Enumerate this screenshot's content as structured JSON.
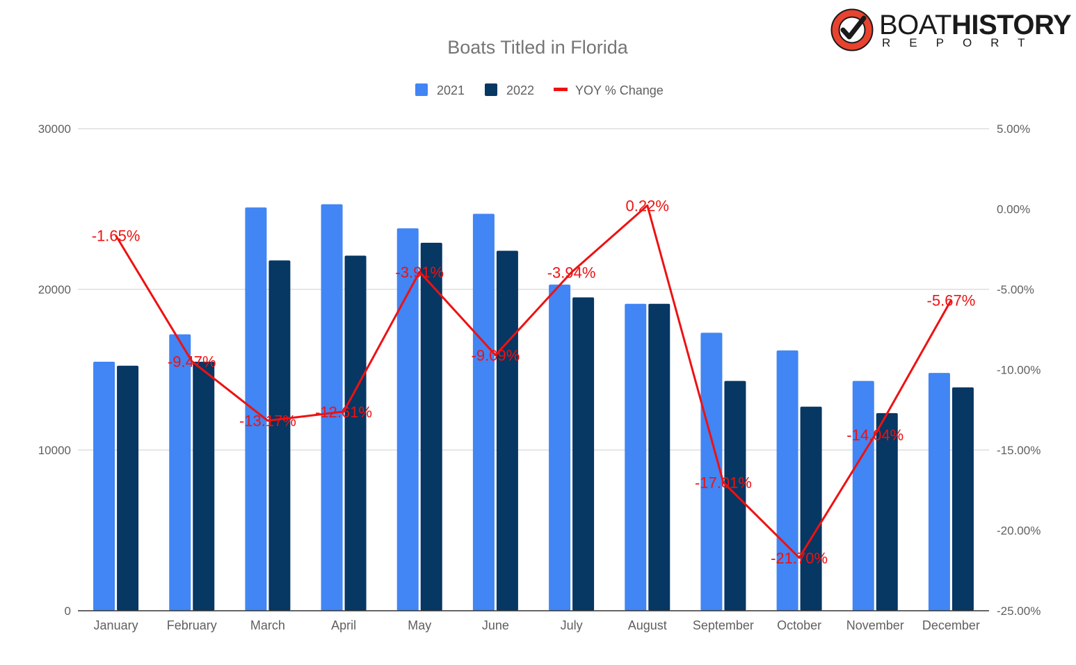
{
  "logo": {
    "brand_light": "BOAT",
    "brand_bold": "HISTORY",
    "brand_sub": "REPORT",
    "icon": "check-ring-logo-icon",
    "colors": {
      "ring": "#e8432e",
      "check": "#1a1a1a"
    }
  },
  "colors": {
    "series_2021": "#4285f4",
    "series_2022": "#073763",
    "yoy_line": "#ee1111",
    "grid": "#cccccc",
    "axis_text": "#5f5f5f",
    "title": "#757575"
  },
  "chart_data": {
    "type": "bar",
    "title": "Boats Titled in Florida",
    "legend_position": "top-center",
    "grid": true,
    "categories": [
      "January",
      "February",
      "March",
      "April",
      "May",
      "June",
      "July",
      "August",
      "September",
      "October",
      "November",
      "December"
    ],
    "series": [
      {
        "name": "2021",
        "type": "bar",
        "axis": "left",
        "values": [
          15500,
          17200,
          25100,
          25300,
          23800,
          24700,
          20300,
          19100,
          17300,
          16200,
          14300,
          14800
        ]
      },
      {
        "name": "2022",
        "type": "bar",
        "axis": "left",
        "values": [
          15250,
          15500,
          21800,
          22100,
          22900,
          22400,
          19500,
          19100,
          14300,
          12700,
          12300,
          13900
        ]
      },
      {
        "name": "YOY % Change",
        "type": "line",
        "axis": "right",
        "values": [
          -1.65,
          -9.47,
          -13.17,
          -12.61,
          -3.91,
          -9.09,
          -3.94,
          0.22,
          -17.01,
          -21.7,
          -14.04,
          -5.67
        ],
        "labels": [
          "-1.65%",
          "-9.47%",
          "-13.17%",
          "-12.61%",
          "-3.91%",
          "-9.09%",
          "-3.94%",
          "0.22%",
          "-17.01%",
          "-21.70%",
          "-14.04%",
          "-5.67%"
        ]
      }
    ],
    "y_left": {
      "range": [
        0,
        30000
      ],
      "ticks": [
        0,
        10000,
        20000,
        30000
      ],
      "tick_labels": [
        "0",
        "10000",
        "20000",
        "30000"
      ]
    },
    "y_right": {
      "range": [
        -25,
        5
      ],
      "ticks": [
        -25,
        -20,
        -15,
        -10,
        -5,
        0,
        5
      ],
      "tick_labels": [
        "-25.00%",
        "-20.00%",
        "-15.00%",
        "-10.00%",
        "-5.00%",
        "0.00%",
        "5.00%"
      ]
    }
  }
}
